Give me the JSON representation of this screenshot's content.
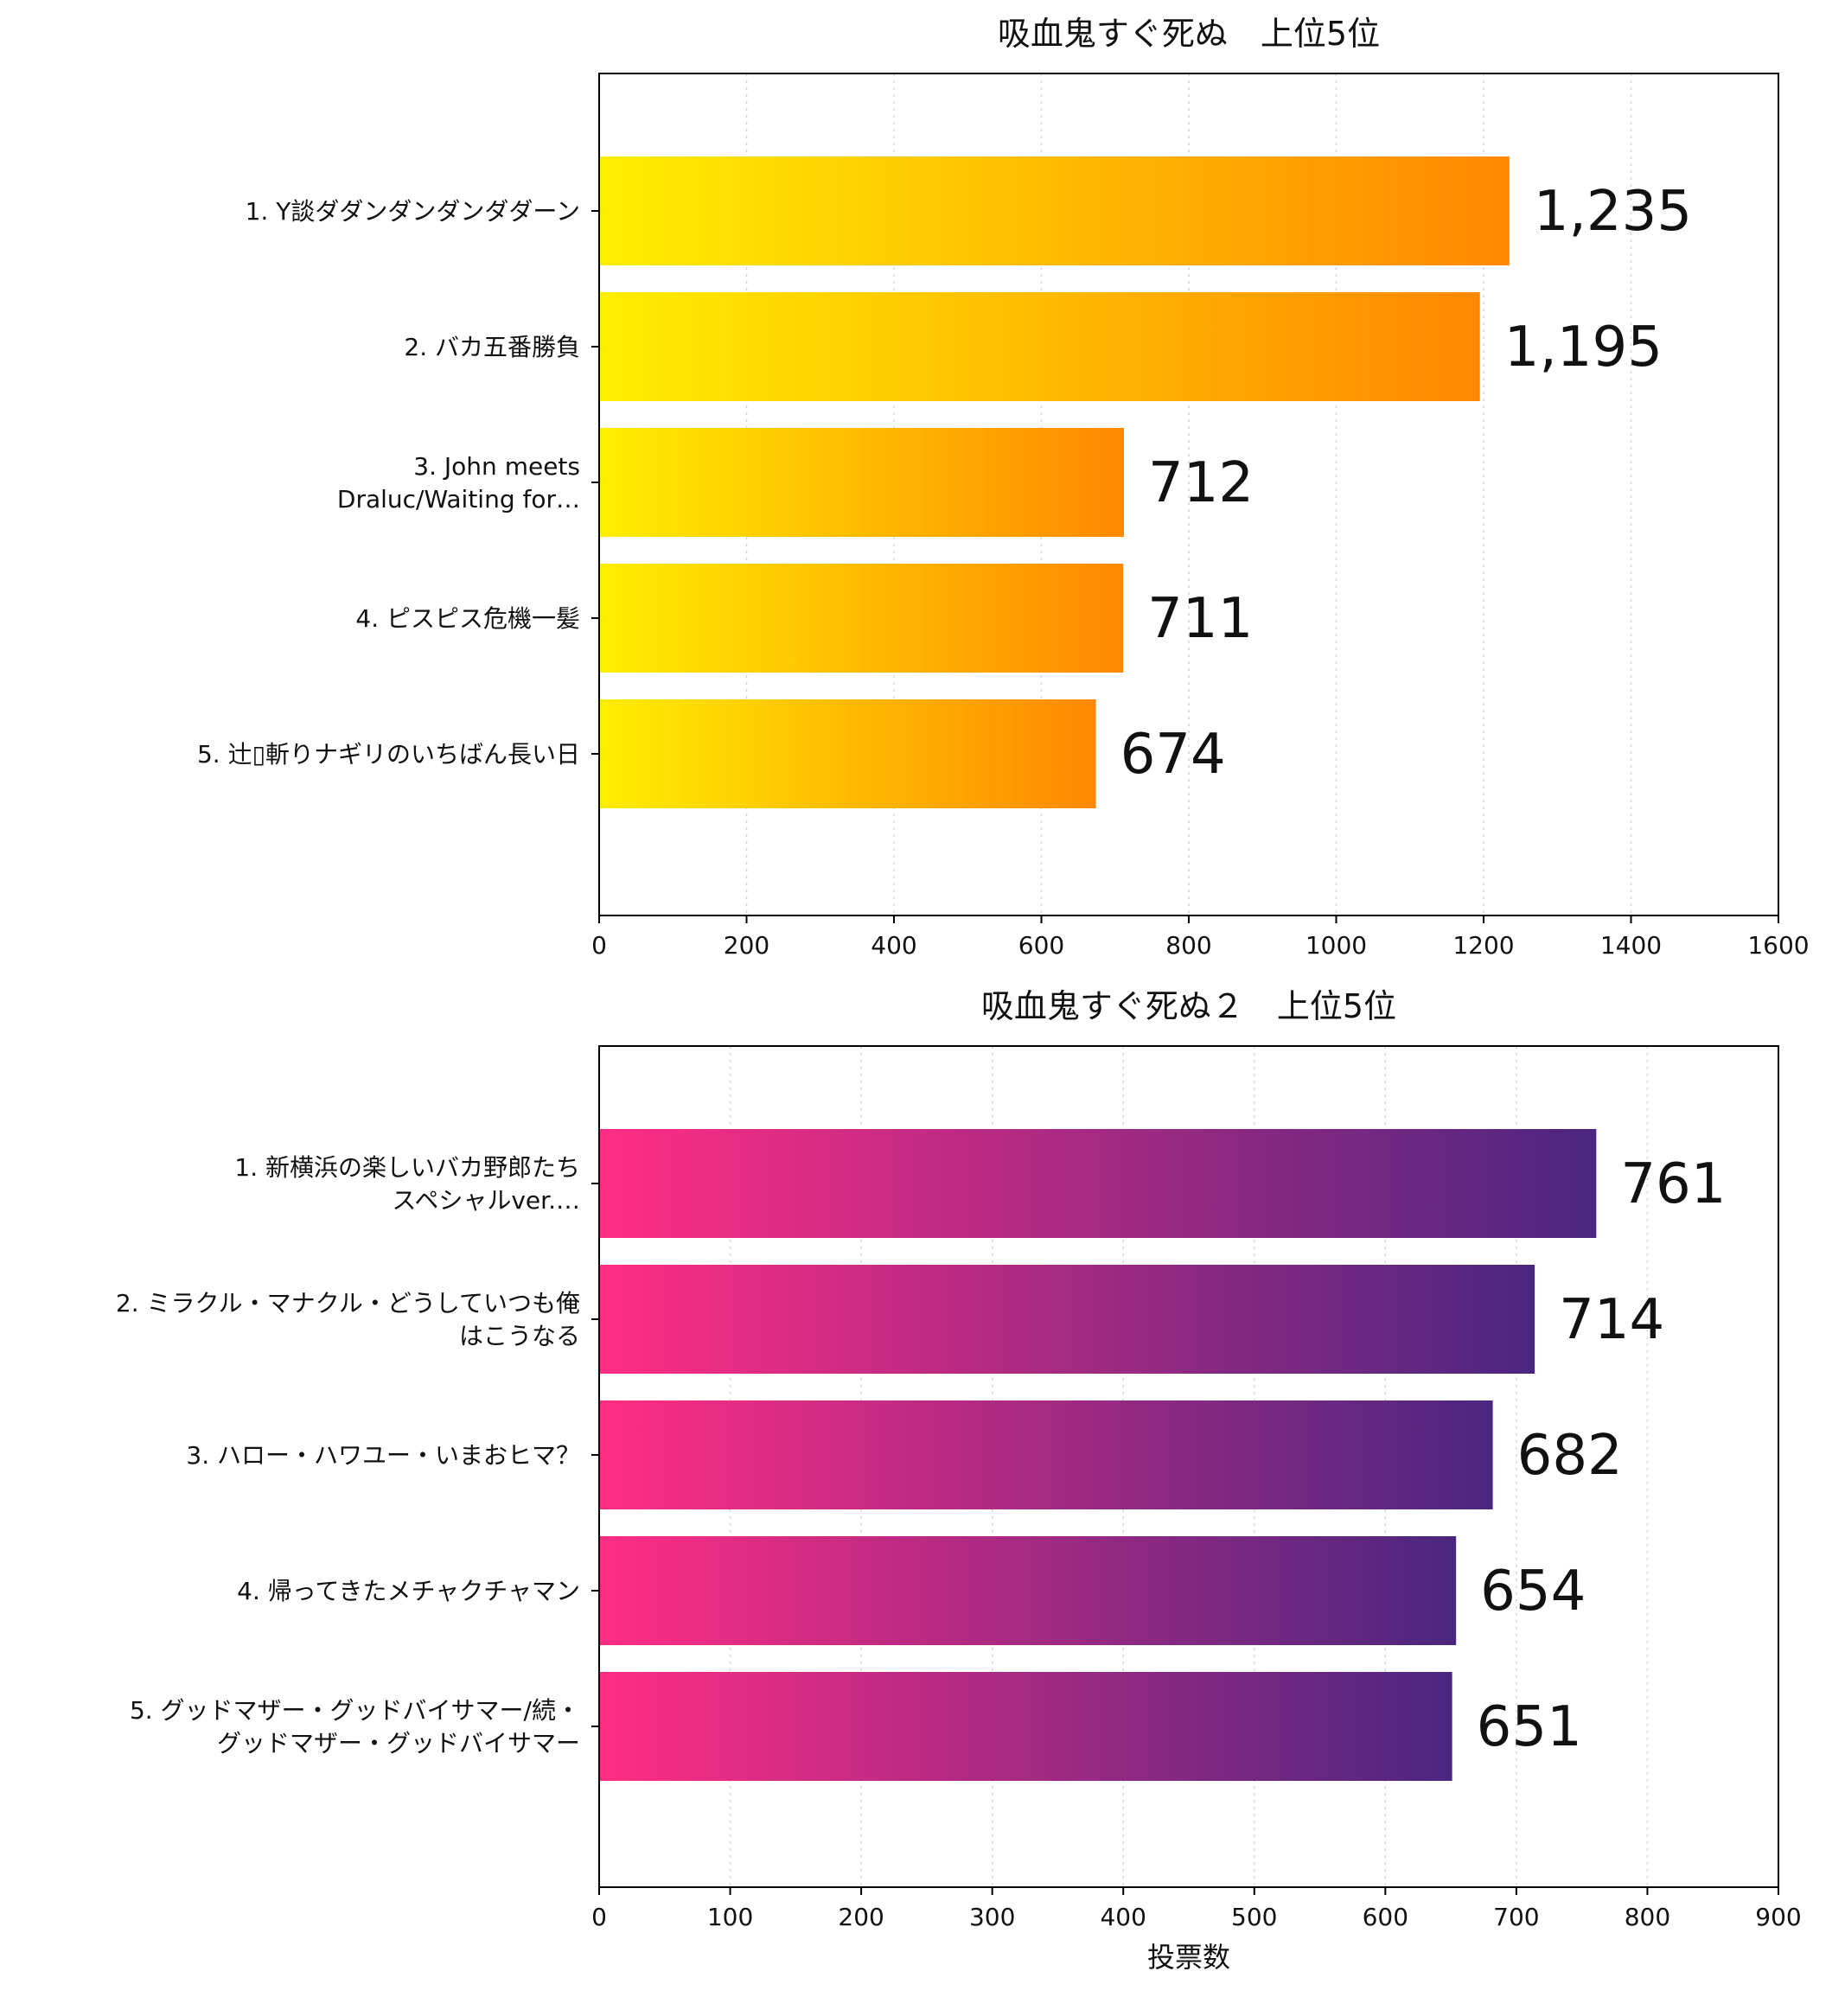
{
  "chart_data": [
    {
      "type": "bar",
      "orientation": "horizontal",
      "title": "吸血鬼すぐ死ぬ　上位5位",
      "categories": [
        [
          "1. Y談ダダンダンダンダダーン"
        ],
        [
          "2. バカ五番勝負"
        ],
        [
          "3. John meets",
          "Draluc/Waiting for…"
        ],
        [
          "4. ピスピス危機一髪"
        ],
        [
          "5. 辻▯斬りナギリのいちばん長い日"
        ]
      ],
      "values": [
        1235,
        1195,
        712,
        711,
        674
      ],
      "value_labels": [
        "1,235",
        "1,195",
        "712",
        "711",
        "674"
      ],
      "xlim": [
        0,
        1600
      ],
      "xticks": [
        "0",
        "200",
        "400",
        "600",
        "800",
        "1000",
        "1200",
        "1400",
        "1600"
      ],
      "xlabel": "",
      "grid": "vertical dotted",
      "gradient": [
        "#ffee00",
        "#ff8800"
      ]
    },
    {
      "type": "bar",
      "orientation": "horizontal",
      "title": "吸血鬼すぐ死ぬ２　上位5位",
      "categories": [
        [
          "1. 新横浜の楽しいバカ野郎たち",
          "スペシャルver.…"
        ],
        [
          "2. ミラクル・マナクル・どうしていつも俺",
          "はこうなる"
        ],
        [
          "3. ハロー・ハワユー・いまおヒマ？"
        ],
        [
          "4. 帰ってきたメチャクチャマン"
        ],
        [
          "5. グッドマザー・グッドバイサマー/続・",
          "グッドマザー・グッドバイサマー"
        ]
      ],
      "values": [
        761,
        714,
        682,
        654,
        651
      ],
      "value_labels": [
        "761",
        "714",
        "682",
        "654",
        "651"
      ],
      "xlim": [
        0,
        900
      ],
      "xticks": [
        "0",
        "100",
        "200",
        "300",
        "400",
        "500",
        "600",
        "700",
        "800",
        "900"
      ],
      "xlabel": "投票数",
      "grid": "vertical dotted",
      "gradient": [
        "#ff2d84",
        "#4a2680"
      ]
    }
  ]
}
